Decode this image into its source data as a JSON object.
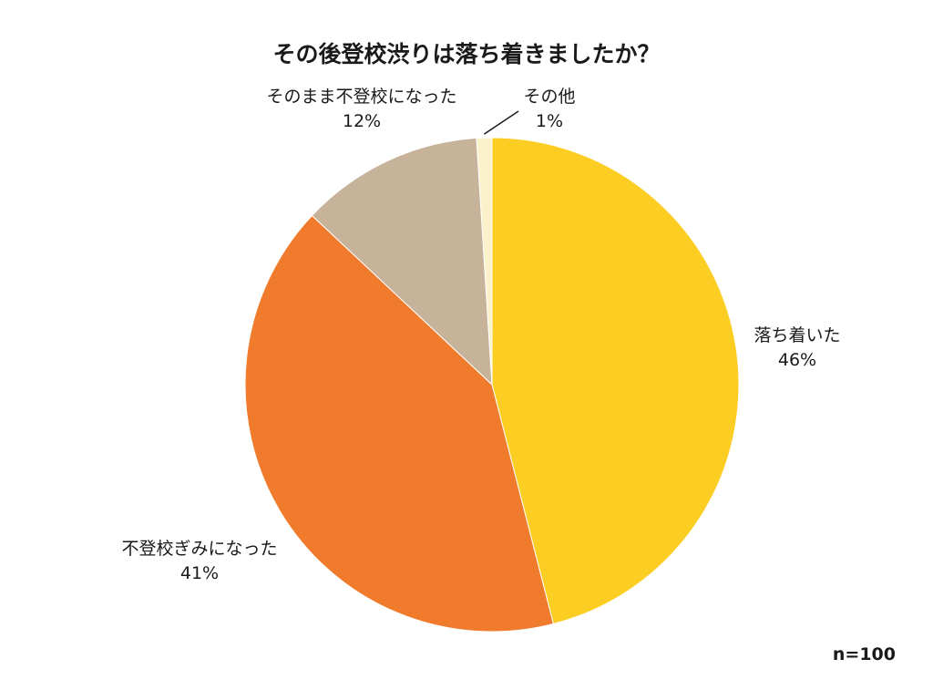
{
  "chart_data": {
    "type": "pie",
    "title": "その後登校渋りは落ち着きましたか？",
    "note": "n=100",
    "slices": [
      {
        "label": "落ち着いた",
        "value": 46,
        "value_label": "46%",
        "color": "#FCCE23"
      },
      {
        "label": "不登校ぎみになった",
        "value": 41,
        "value_label": "41%",
        "color": "#F07B2C"
      },
      {
        "label": "そのまま不登校になった",
        "value": 12,
        "value_label": "12%",
        "color": "#C7B29A"
      },
      {
        "label": "その他",
        "value": 1,
        "value_label": "1%",
        "color": "#FBF1CB"
      }
    ]
  }
}
